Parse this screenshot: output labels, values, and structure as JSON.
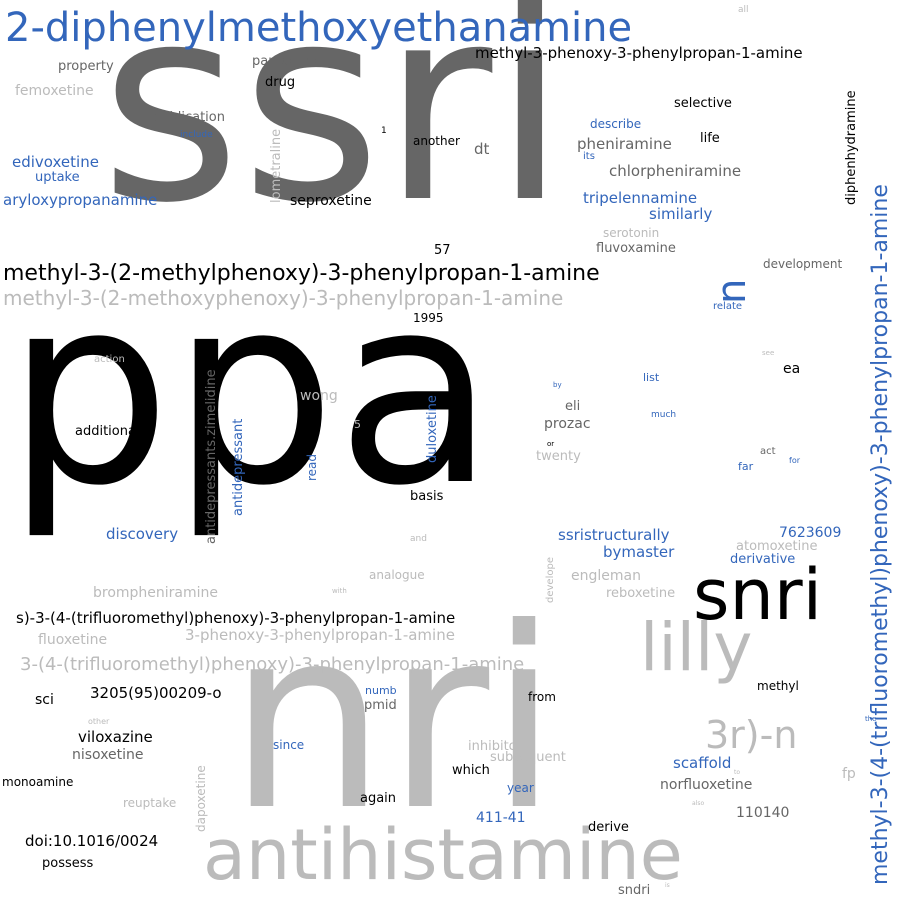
{
  "colors": {
    "black": "#000000",
    "dark_gray": "#666666",
    "light_gray": "#bbbbbb",
    "blue": "#3366bb",
    "background": "#ffffff"
  },
  "words": [
    "ppa",
    "ssri",
    "nri",
    "antihistamine",
    "snri",
    "lilly",
    "2-diphenylmethoxyethanamine",
    "methyl-3-(4-(trifluoromethyl)phenoxy)-3-phenylpropan-1-amine",
    "methyl-3-(2-methylphenoxy)-3-phenylpropan-1-amine",
    "methyl-3-(2-methoxyphenoxy)-3-phenylpropan-1-amine",
    "3r)-n",
    "n",
    "3-(4-(trifluoromethyl)phenoxy)-3-phenylpropan-1-amine",
    "s)-3-(4-(trifluoromethyl)phenoxy)-3-phenylpropan-1-amine",
    "3-phenoxy-3-phenylpropan-1-amine",
    "methyl-3-phenoxy-3-phenylpropan-1-amine",
    "aryloxypropanamine",
    "edivoxetine",
    "uptake",
    "femoxetine",
    "property",
    "paroxetine",
    "drug",
    "publication",
    "include",
    "lometraline",
    "seproxetine",
    "another",
    "dt",
    "pheniramine",
    "chlorpheniramine",
    "describe",
    "its",
    "selective",
    "life",
    "tripelennamine",
    "similarly",
    "serotonin",
    "fluvoxamine",
    "diphenhydramine",
    "development",
    "relate",
    "57",
    "1995",
    "action",
    "additional",
    "antidepressants.zimelidine",
    "antidepressant",
    "read",
    "duloxetine",
    "wong",
    "5",
    "eli",
    "prozac",
    "twenty",
    "by",
    "list",
    "much",
    "ea",
    "see",
    "far",
    "act",
    "for",
    "basis",
    "discovery",
    "ssristructurally",
    "bymaster",
    "7623609",
    "atomoxetine",
    "derivative",
    "and",
    "develope",
    "analogue",
    "engleman",
    "reboxetine",
    "brompheniramine",
    "with",
    "fluoxetine",
    "sci",
    "3205(95)00209-o",
    "numb",
    "pmid",
    "from",
    "methyl",
    "other",
    "viloxazine",
    "nisoxetine",
    "since",
    "dapoxetine",
    "inhibitor",
    "subsequent",
    "which",
    "scaffold",
    "norfluoxetine",
    "the",
    "fp",
    "monoamine",
    "reuptake",
    "year",
    "again",
    "411-41",
    "110140",
    "doi:10.1016/0024",
    "derive",
    "possess",
    "sndri",
    "all",
    "1",
    "or",
    "to",
    "also",
    "is"
  ]
}
